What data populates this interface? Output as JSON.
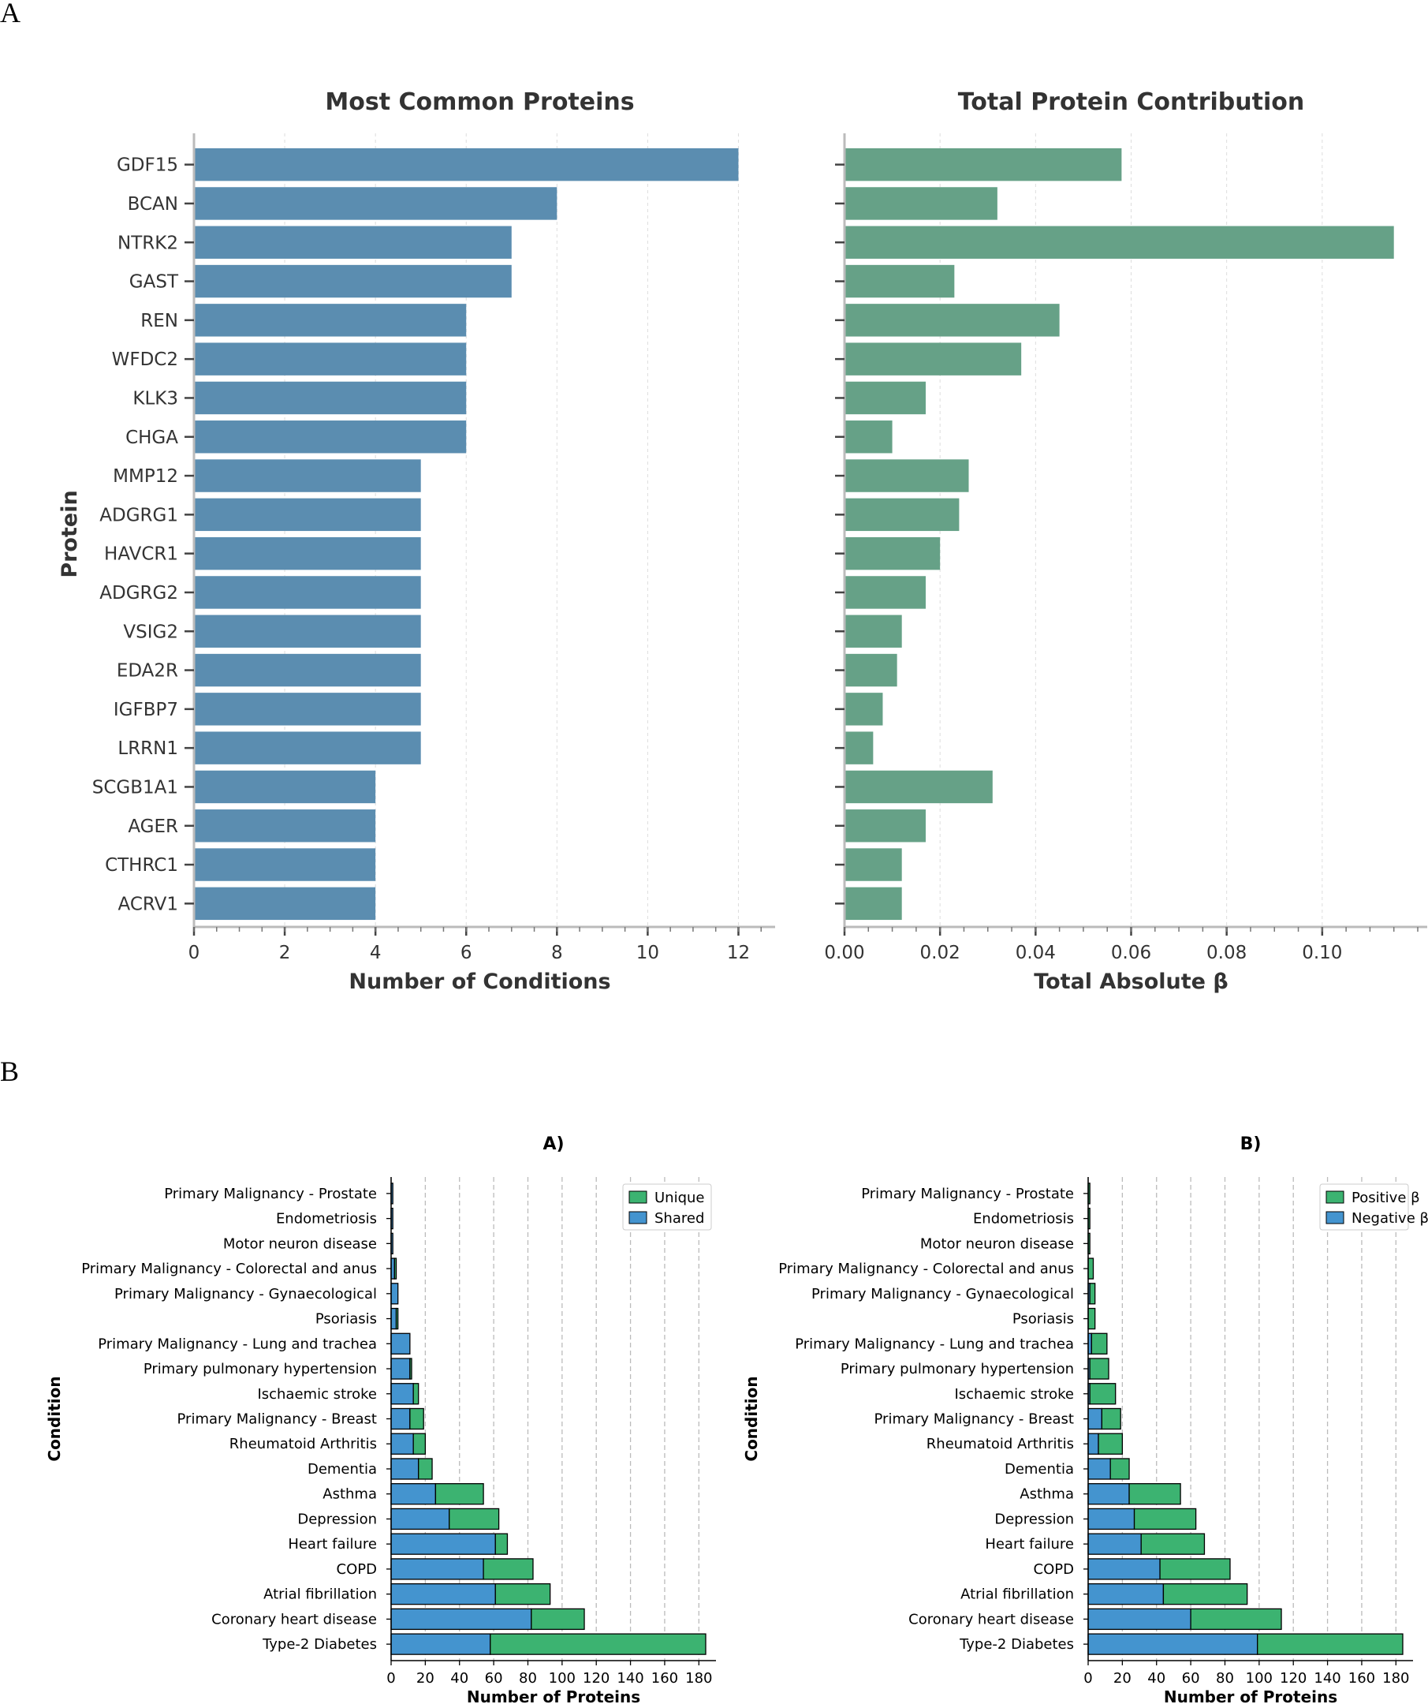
{
  "panel_labels": {
    "a": "A",
    "b": "B"
  },
  "colors": {
    "blue_a": "#5b8db0",
    "green_a": "#66a187",
    "green_b": "#3cb371",
    "blue_b": "#4494cf",
    "grid": "#dddddd",
    "axis": "#444444",
    "text": "#333333"
  },
  "chart_data": [
    {
      "type": "bar",
      "orientation": "horizontal",
      "title": "Most Common Proteins",
      "xlabel": "Number of Conditions",
      "ylabel": "Protein",
      "xlim": [
        0,
        12.6
      ],
      "xticks": [
        "0",
        "2",
        "4",
        "6",
        "8",
        "10",
        "12"
      ],
      "grid": "vertical-dashed",
      "categories": [
        "GDF15",
        "BCAN",
        "NTRK2",
        "GAST",
        "REN",
        "WFDC2",
        "KLK3",
        "CHGA",
        "MMP12",
        "ADGRG1",
        "HAVCR1",
        "ADGRG2",
        "VSIG2",
        "EDA2R",
        "IGFBP7",
        "LRRN1",
        "SCGB1A1",
        "AGER",
        "CTHRC1",
        "ACRV1"
      ],
      "values": [
        12,
        8,
        7,
        7,
        6,
        6,
        6,
        6,
        5,
        5,
        5,
        5,
        5,
        5,
        5,
        5,
        4,
        4,
        4,
        4
      ]
    },
    {
      "type": "bar",
      "orientation": "horizontal",
      "title": "Total Protein Contribution",
      "xlabel": "Total Absolute β",
      "ylabel": "",
      "xlim": [
        0,
        0.12
      ],
      "xticks": [
        "0.00",
        "0.02",
        "0.04",
        "0.06",
        "0.08",
        "0.10"
      ],
      "grid": "vertical-dashed",
      "categories": [
        "GDF15",
        "BCAN",
        "NTRK2",
        "GAST",
        "REN",
        "WFDC2",
        "KLK3",
        "CHGA",
        "MMP12",
        "ADGRG1",
        "HAVCR1",
        "ADGRG2",
        "VSIG2",
        "EDA2R",
        "IGFBP7",
        "LRRN1",
        "SCGB1A1",
        "AGER",
        "CTHRC1",
        "ACRV1"
      ],
      "values": [
        0.058,
        0.032,
        0.115,
        0.023,
        0.045,
        0.037,
        0.017,
        0.01,
        0.026,
        0.024,
        0.02,
        0.017,
        0.012,
        0.011,
        0.008,
        0.006,
        0.031,
        0.017,
        0.012,
        0.012
      ]
    },
    {
      "type": "bar",
      "orientation": "horizontal",
      "stacked": true,
      "title": "A)",
      "xlabel": "Number of Proteins",
      "ylabel": "Condition",
      "xlim": [
        0,
        190
      ],
      "xticks": [
        "0",
        "20",
        "40",
        "60",
        "80",
        "100",
        "120",
        "140",
        "160",
        "180"
      ],
      "grid": "vertical-dashed",
      "legend": "top-right",
      "categories": [
        "Primary Malignancy - Prostate",
        "Endometriosis",
        "Motor neuron disease",
        "Primary Malignancy - Colorectal and anus",
        "Primary Malignancy - Gynaecological",
        "Psoriasis",
        "Primary Malignancy - Lung and trachea",
        "Primary pulmonary hypertension",
        "Ischaemic stroke",
        "Primary Malignancy - Breast",
        "Rheumatoid Arthritis",
        "Dementia",
        "Asthma",
        "Depression",
        "Heart failure",
        "COPD",
        "Atrial fibrillation",
        "Coronary heart disease",
        "Type-2 Diabetes"
      ],
      "series": [
        {
          "name": "Shared",
          "values": [
            1,
            1,
            1,
            2,
            4,
            3,
            11,
            11,
            13,
            11,
            13,
            16,
            26,
            34,
            61,
            54,
            61,
            82,
            58
          ]
        },
        {
          "name": "Unique",
          "values": [
            0,
            0,
            0,
            1,
            0,
            1,
            0,
            1,
            3,
            8,
            7,
            8,
            28,
            29,
            7,
            29,
            32,
            31,
            126
          ]
        }
      ]
    },
    {
      "type": "bar",
      "orientation": "horizontal",
      "stacked": true,
      "title": "B)",
      "xlabel": "Number of Proteins",
      "ylabel": "Condition",
      "xlim": [
        0,
        190
      ],
      "xticks": [
        "0",
        "20",
        "40",
        "60",
        "80",
        "100",
        "120",
        "140",
        "160",
        "180"
      ],
      "grid": "vertical-dashed",
      "legend": "top-right",
      "categories": [
        "Primary Malignancy - Prostate",
        "Endometriosis",
        "Motor neuron disease",
        "Primary Malignancy - Colorectal and anus",
        "Primary Malignancy - Gynaecological",
        "Psoriasis",
        "Primary Malignancy - Lung and trachea",
        "Primary pulmonary hypertension",
        "Ischaemic stroke",
        "Primary Malignancy - Breast",
        "Rheumatoid Arthritis",
        "Dementia",
        "Asthma",
        "Depression",
        "Heart failure",
        "COPD",
        "Atrial fibrillation",
        "Coronary heart disease",
        "Type-2 Diabetes"
      ],
      "series": [
        {
          "name": "Negative β",
          "values": [
            0,
            0,
            0,
            0,
            1,
            0,
            2,
            1,
            1,
            8,
            6,
            13,
            24,
            27,
            31,
            42,
            44,
            60,
            99
          ]
        },
        {
          "name": "Positive β",
          "values": [
            1,
            1,
            1,
            3,
            3,
            4,
            9,
            11,
            15,
            11,
            14,
            11,
            30,
            36,
            37,
            41,
            49,
            53,
            85
          ]
        }
      ]
    }
  ]
}
